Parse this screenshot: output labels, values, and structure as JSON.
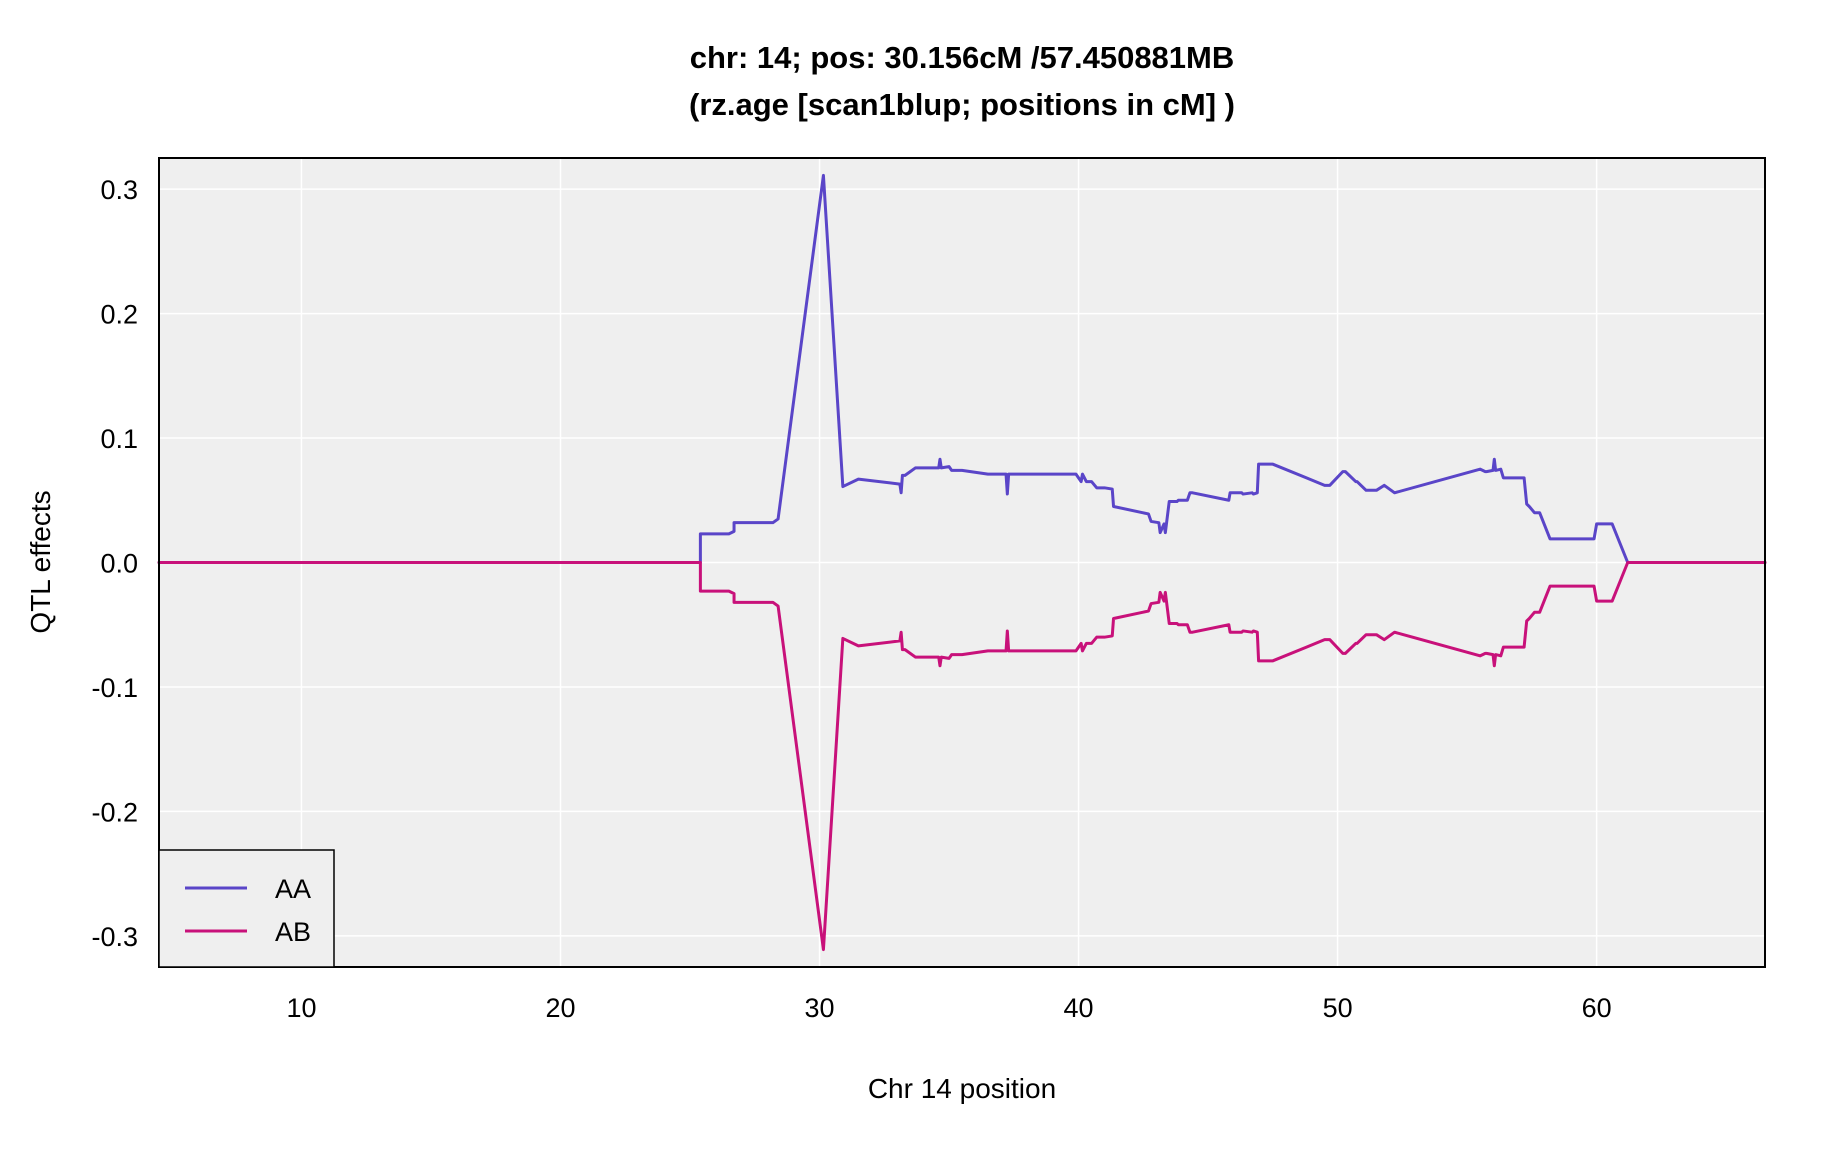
{
  "chart_data": {
    "type": "line",
    "title": "chr: 14; pos: 30.156cM /57.450881MB",
    "subtitle": "(rz.age [scan1blup; positions in cM] )",
    "xlabel": "Chr 14 position",
    "ylabel": "QTL effects",
    "xlim": [
      4.5,
      66.5
    ],
    "ylim": [
      -0.325,
      0.325
    ],
    "xticks": [
      10,
      20,
      30,
      40,
      50,
      60
    ],
    "xtick_labels": [
      "10",
      "20",
      "30",
      "40",
      "50",
      "60"
    ],
    "yticks": [
      -0.3,
      -0.2,
      -0.1,
      0.0,
      0.1,
      0.2,
      0.3
    ],
    "ytick_labels": [
      "-0.3",
      "-0.2",
      "-0.1",
      "0.0",
      "0.1",
      "0.2",
      "0.3"
    ],
    "grid": true,
    "legend_position": "bottom-left",
    "background_color": "#efefef",
    "series": [
      {
        "name": "AA",
        "color": "#5a45c8",
        "x": [
          4.5,
          25.4,
          25.4,
          26.5,
          26.7,
          26.7,
          28.2,
          28.4,
          30.15,
          30.9,
          31.5,
          33.1,
          33.15,
          33.2,
          33.3,
          33.7,
          34.6,
          34.65,
          34.7,
          35.0,
          35.1,
          35.5,
          36.5,
          37.2,
          37.25,
          37.3,
          39.9,
          40.1,
          40.15,
          40.3,
          40.5,
          40.7,
          41.0,
          41.3,
          41.35,
          42.7,
          42.8,
          43.1,
          43.15,
          43.3,
          43.35,
          43.5,
          43.8,
          43.85,
          44.2,
          44.3,
          44.4,
          45.8,
          45.85,
          46.3,
          46.35,
          46.7,
          46.75,
          46.9,
          46.95,
          47.5,
          48.8,
          49.5,
          49.7,
          50.2,
          50.3,
          50.7,
          50.75,
          51.1,
          51.45,
          51.5,
          51.8,
          52.2,
          55.5,
          55.7,
          55.75,
          56.0,
          56.05,
          56.1,
          56.3,
          56.4,
          56.6,
          57.2,
          57.3,
          57.4,
          57.6,
          57.8,
          58.2,
          58.8,
          59.9,
          60.0,
          60.4,
          60.6,
          61.2,
          66.5
        ],
        "y": [
          0.0,
          0.0,
          0.023,
          0.023,
          0.025,
          0.032,
          0.032,
          0.035,
          0.311,
          0.061,
          0.067,
          0.063,
          0.056,
          0.07,
          0.07,
          0.076,
          0.076,
          0.083,
          0.076,
          0.077,
          0.074,
          0.074,
          0.071,
          0.071,
          0.055,
          0.071,
          0.071,
          0.065,
          0.071,
          0.065,
          0.065,
          0.06,
          0.06,
          0.059,
          0.045,
          0.039,
          0.033,
          0.032,
          0.024,
          0.031,
          0.024,
          0.049,
          0.049,
          0.05,
          0.05,
          0.056,
          0.056,
          0.05,
          0.056,
          0.056,
          0.055,
          0.056,
          0.055,
          0.056,
          0.079,
          0.079,
          0.068,
          0.062,
          0.062,
          0.073,
          0.073,
          0.065,
          0.065,
          0.058,
          0.058,
          0.058,
          0.062,
          0.056,
          0.075,
          0.073,
          0.073,
          0.074,
          0.083,
          0.074,
          0.075,
          0.068,
          0.068,
          0.068,
          0.047,
          0.045,
          0.04,
          0.04,
          0.019,
          0.019,
          0.019,
          0.031,
          0.031,
          0.031,
          0.0,
          0.0
        ]
      },
      {
        "name": "AB",
        "color": "#c8117a",
        "x": [
          4.5,
          25.4,
          25.4,
          26.5,
          26.7,
          26.7,
          28.2,
          28.4,
          30.15,
          30.9,
          31.5,
          33.1,
          33.15,
          33.2,
          33.3,
          33.7,
          34.6,
          34.65,
          34.7,
          35.0,
          35.1,
          35.5,
          36.5,
          37.2,
          37.25,
          37.3,
          39.9,
          40.1,
          40.15,
          40.3,
          40.5,
          40.7,
          41.0,
          41.3,
          41.35,
          42.7,
          42.8,
          43.1,
          43.15,
          43.3,
          43.35,
          43.5,
          43.8,
          43.85,
          44.2,
          44.3,
          44.4,
          45.8,
          45.85,
          46.3,
          46.35,
          46.7,
          46.75,
          46.9,
          46.95,
          47.5,
          48.8,
          49.5,
          49.7,
          50.2,
          50.3,
          50.7,
          50.75,
          51.1,
          51.45,
          51.5,
          51.8,
          52.2,
          55.5,
          55.7,
          55.75,
          56.0,
          56.05,
          56.1,
          56.3,
          56.4,
          56.6,
          57.2,
          57.3,
          57.4,
          57.6,
          57.8,
          58.2,
          58.8,
          59.9,
          60.0,
          60.4,
          60.6,
          61.2,
          66.5
        ],
        "y": [
          0.0,
          0.0,
          -0.023,
          -0.023,
          -0.025,
          -0.032,
          -0.032,
          -0.035,
          -0.311,
          -0.061,
          -0.067,
          -0.063,
          -0.056,
          -0.07,
          -0.07,
          -0.076,
          -0.076,
          -0.083,
          -0.076,
          -0.077,
          -0.074,
          -0.074,
          -0.071,
          -0.071,
          -0.055,
          -0.071,
          -0.071,
          -0.065,
          -0.071,
          -0.065,
          -0.065,
          -0.06,
          -0.06,
          -0.059,
          -0.045,
          -0.039,
          -0.033,
          -0.032,
          -0.024,
          -0.031,
          -0.024,
          -0.049,
          -0.049,
          -0.05,
          -0.05,
          -0.056,
          -0.056,
          -0.05,
          -0.056,
          -0.056,
          -0.055,
          -0.056,
          -0.055,
          -0.056,
          -0.079,
          -0.079,
          -0.068,
          -0.062,
          -0.062,
          -0.073,
          -0.073,
          -0.065,
          -0.065,
          -0.058,
          -0.058,
          -0.058,
          -0.062,
          -0.056,
          -0.075,
          -0.073,
          -0.073,
          -0.074,
          -0.083,
          -0.074,
          -0.075,
          -0.068,
          -0.068,
          -0.068,
          -0.047,
          -0.045,
          -0.04,
          -0.04,
          -0.019,
          -0.019,
          -0.019,
          -0.031,
          -0.031,
          -0.031,
          0.0,
          0.0
        ]
      }
    ]
  }
}
